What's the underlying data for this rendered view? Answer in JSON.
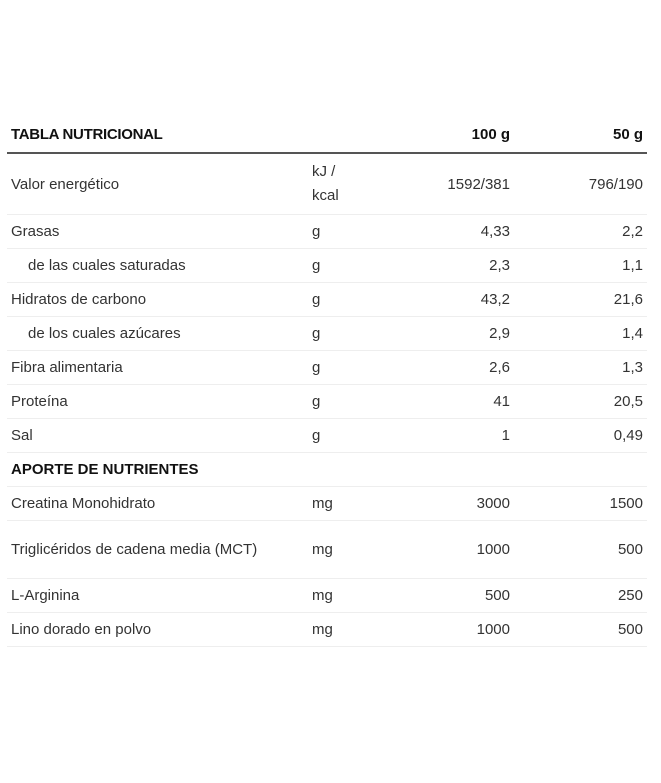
{
  "header": {
    "title": "TABLA NUTRICIONAL",
    "col_100g": "100 g",
    "col_50g": "50 g"
  },
  "energy": {
    "name": "Valor energético",
    "unit_line1": "kJ /",
    "unit_line2": "kcal",
    "v100": "1592/381",
    "v50": "796/190"
  },
  "rows": [
    {
      "name": "Grasas",
      "unit": "g",
      "v100": "4,33",
      "v50": "2,2",
      "indent": false
    },
    {
      "name": "de las cuales saturadas",
      "unit": "g",
      "v100": "2,3",
      "v50": "1,1",
      "indent": true
    },
    {
      "name": "Hidratos de carbono",
      "unit": "g",
      "v100": "43,2",
      "v50": "21,6",
      "indent": false
    },
    {
      "name": "de los cuales azúcares",
      "unit": "g",
      "v100": "2,9",
      "v50": "1,4",
      "indent": true
    },
    {
      "name": "Fibra alimentaria",
      "unit": "g",
      "v100": "2,6",
      "v50": "1,3",
      "indent": false
    },
    {
      "name": "Proteína",
      "unit": "g",
      "v100": "41",
      "v50": "20,5",
      "indent": false
    },
    {
      "name": "Sal",
      "unit": "g",
      "v100": "1",
      "v50": "0,49",
      "indent": false
    }
  ],
  "section": {
    "title": "APORTE DE NUTRIENTES"
  },
  "nutrients": [
    {
      "name": "Creatina Monohidrato",
      "unit": "mg",
      "v100": "3000",
      "v50": "1500"
    },
    {
      "name": "Triglicéridos de cadena media (MCT)",
      "unit": "mg",
      "v100": "1000",
      "v50": "500"
    },
    {
      "name": "L-Arginina",
      "unit": "mg",
      "v100": "500",
      "v50": "250"
    },
    {
      "name": "Lino dorado en polvo",
      "unit": "mg",
      "v100": "1000",
      "v50": "500"
    }
  ]
}
